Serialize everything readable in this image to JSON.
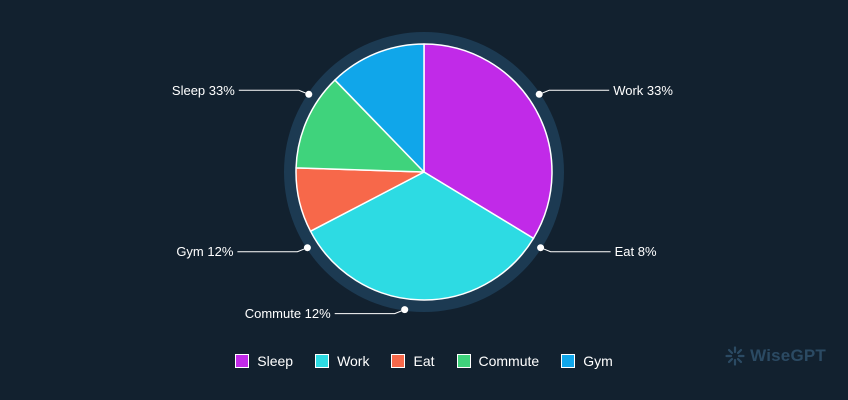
{
  "chart_data": {
    "type": "pie",
    "slices": [
      {
        "label": "Sleep",
        "callout": "Sleep 33%",
        "value": 33,
        "color": "#c12ae8"
      },
      {
        "label": "Work",
        "callout": "Work 33%",
        "value": 33,
        "color": "#2ddbe3"
      },
      {
        "label": "Eat",
        "callout": "Eat 8%",
        "value": 8,
        "color": "#f7684a"
      },
      {
        "label": "Commute",
        "callout": "Commute 12%",
        "value": 12,
        "color": "#3fd37c"
      },
      {
        "label": "Gym",
        "callout": "Gym 12%",
        "value": 12,
        "color": "#10a6ea"
      }
    ],
    "legend_position": "bottom"
  },
  "colors": {
    "background": "#12212f",
    "ring": "#1c3a52",
    "watermark": "#2b4a63"
  },
  "watermark": {
    "text": "WiseGPT",
    "icon": "wisegpt-logo-icon"
  }
}
